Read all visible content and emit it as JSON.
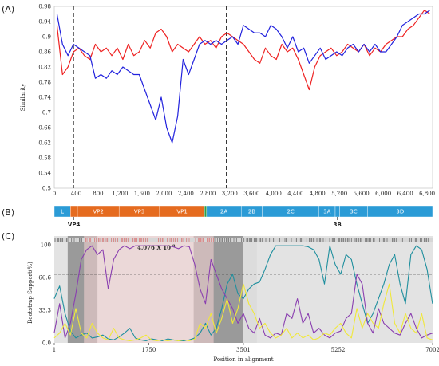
{
  "panel_labels": {
    "a": "(A)",
    "b": "(B)",
    "c": "(C)"
  },
  "chart_data": [
    {
      "type": "line",
      "panel": "(A)",
      "ylabel": "Similarity",
      "xlabel": "",
      "xlim": [
        0,
        6900
      ],
      "ylim": [
        0.5,
        0.98
      ],
      "x_ticks": [
        0,
        400,
        800,
        1200,
        1600,
        2000,
        2400,
        2800,
        3200,
        3600,
        4000,
        4400,
        4800,
        5200,
        5600,
        6000,
        6400,
        6800
      ],
      "x_tick_labels": [
        "0",
        "400",
        "800",
        "1,200",
        "1,600",
        "2,000",
        "2,400",
        "2,800",
        "3,200",
        "3,600",
        "4,000",
        "4,400",
        "4,800",
        "5,200",
        "5,600",
        "6,000",
        "6,400",
        "6,800"
      ],
      "y_ticks": [
        0.5,
        0.54,
        0.58,
        0.62,
        0.66,
        0.7,
        0.74,
        0.78,
        0.82,
        0.86,
        0.9,
        0.94,
        0.98
      ],
      "y_tick_labels": [
        "0.5",
        "0.54",
        "0.58",
        "0.62",
        "0.66",
        "0.7",
        "0.74",
        "0.78",
        "0.82",
        "0.86",
        "0.9",
        "0.94",
        "0.98"
      ],
      "vlines": [
        350,
        3140
      ],
      "grid": false,
      "series": [
        {
          "color": "#ee2222",
          "x": [
            50,
            150,
            250,
            350,
            450,
            550,
            650,
            750,
            850,
            950,
            1050,
            1150,
            1250,
            1350,
            1450,
            1550,
            1650,
            1750,
            1850,
            1950,
            2050,
            2150,
            2250,
            2350,
            2450,
            2550,
            2650,
            2750,
            2850,
            2950,
            3050,
            3150,
            3250,
            3350,
            3450,
            3550,
            3650,
            3750,
            3850,
            3950,
            4050,
            4150,
            4250,
            4350,
            4450,
            4550,
            4650,
            4750,
            4850,
            4950,
            5050,
            5150,
            5250,
            5350,
            5450,
            5550,
            5650,
            5750,
            5850,
            5950,
            6050,
            6150,
            6250,
            6350,
            6450,
            6550,
            6650,
            6750,
            6850
          ],
          "values": [
            0.93,
            0.8,
            0.82,
            0.86,
            0.87,
            0.85,
            0.84,
            0.88,
            0.86,
            0.87,
            0.85,
            0.87,
            0.84,
            0.88,
            0.85,
            0.86,
            0.89,
            0.87,
            0.91,
            0.92,
            0.9,
            0.86,
            0.88,
            0.87,
            0.86,
            0.88,
            0.9,
            0.88,
            0.89,
            0.87,
            0.9,
            0.91,
            0.9,
            0.89,
            0.88,
            0.86,
            0.84,
            0.83,
            0.87,
            0.85,
            0.84,
            0.88,
            0.86,
            0.87,
            0.84,
            0.8,
            0.76,
            0.82,
            0.85,
            0.86,
            0.87,
            0.85,
            0.86,
            0.88,
            0.87,
            0.86,
            0.88,
            0.85,
            0.87,
            0.86,
            0.88,
            0.89,
            0.9,
            0.9,
            0.92,
            0.93,
            0.95,
            0.97,
            0.96
          ]
        },
        {
          "color": "#2222dd",
          "x": [
            50,
            150,
            250,
            350,
            450,
            550,
            650,
            750,
            850,
            950,
            1050,
            1150,
            1250,
            1350,
            1450,
            1550,
            1650,
            1750,
            1850,
            1950,
            2050,
            2150,
            2250,
            2350,
            2450,
            2550,
            2650,
            2750,
            2850,
            2950,
            3050,
            3150,
            3250,
            3350,
            3450,
            3550,
            3650,
            3750,
            3850,
            3950,
            4050,
            4150,
            4250,
            4350,
            4450,
            4550,
            4650,
            4750,
            4850,
            4950,
            5050,
            5150,
            5250,
            5350,
            5450,
            5550,
            5650,
            5750,
            5850,
            5950,
            6050,
            6150,
            6250,
            6350,
            6450,
            6550,
            6650,
            6750,
            6850
          ],
          "values": [
            0.96,
            0.88,
            0.85,
            0.88,
            0.87,
            0.86,
            0.85,
            0.79,
            0.8,
            0.79,
            0.81,
            0.8,
            0.82,
            0.81,
            0.8,
            0.8,
            0.76,
            0.72,
            0.68,
            0.74,
            0.66,
            0.62,
            0.69,
            0.84,
            0.8,
            0.84,
            0.88,
            0.89,
            0.88,
            0.89,
            0.88,
            0.89,
            0.9,
            0.88,
            0.93,
            0.92,
            0.91,
            0.91,
            0.9,
            0.93,
            0.92,
            0.9,
            0.87,
            0.9,
            0.86,
            0.87,
            0.83,
            0.85,
            0.87,
            0.84,
            0.85,
            0.86,
            0.85,
            0.87,
            0.88,
            0.86,
            0.88,
            0.86,
            0.88,
            0.86,
            0.86,
            0.88,
            0.9,
            0.93,
            0.94,
            0.95,
            0.96,
            0.96,
            0.97
          ]
        }
      ]
    },
    {
      "type": "table",
      "panel": "(B)",
      "genome_length": 7002,
      "segments": [
        {
          "label": "L",
          "start": 1,
          "end": 300,
          "color": "#2b9bd6"
        },
        {
          "label": "",
          "start": 300,
          "end": 430,
          "color": "#e56b1f"
        },
        {
          "label": "VP2",
          "start": 430,
          "end": 1200,
          "color": "#e56b1f"
        },
        {
          "label": "VP3",
          "start": 1200,
          "end": 1950,
          "color": "#e56b1f"
        },
        {
          "label": "VP1",
          "start": 1950,
          "end": 2780,
          "color": "#e56b1f"
        },
        {
          "label": "",
          "start": 2780,
          "end": 2820,
          "color": "#2d9e4a"
        },
        {
          "label": "2A",
          "start": 2820,
          "end": 3460,
          "color": "#2b9bd6"
        },
        {
          "label": "2B",
          "start": 3460,
          "end": 3850,
          "color": "#2b9bd6"
        },
        {
          "label": "2C",
          "start": 3850,
          "end": 4900,
          "color": "#2b9bd6"
        },
        {
          "label": "3A",
          "start": 4900,
          "end": 5200,
          "color": "#2b9bd6"
        },
        {
          "label": "",
          "start": 5200,
          "end": 5280,
          "color": "#2b9bd6"
        },
        {
          "label": "3C",
          "start": 5280,
          "end": 5800,
          "color": "#2b9bd6"
        },
        {
          "label": "3D",
          "start": 5800,
          "end": 7002,
          "color": "#2b9bd6"
        }
      ],
      "callouts": [
        {
          "label": "VP4",
          "position": 365
        },
        {
          "label": "3B",
          "position": 5240
        }
      ]
    },
    {
      "type": "line",
      "panel": "(C)",
      "ylabel": "Bootstrap Support(%)",
      "xlabel": "Position in alignment",
      "xlim": [
        1,
        7002
      ],
      "ylim": [
        0,
        100
      ],
      "x_ticks": [
        1,
        1750,
        3501,
        5252,
        7002
      ],
      "x_tick_labels": [
        "1",
        "1750",
        "3501",
        "5252",
        "7002"
      ],
      "y_ticks": [
        0,
        33.3,
        66.6,
        100
      ],
      "y_tick_labels": [
        "0.0",
        "33.3",
        "66.6",
        "100"
      ],
      "threshold": 70,
      "annotation": "4.076 X 10",
      "annotation_sup": "-8",
      "shaded": [
        {
          "start": 250,
          "end": 3750,
          "color": "#dcdcdc"
        },
        {
          "start": 250,
          "end": 800,
          "color": "#9a9a9a"
        },
        {
          "start": 2580,
          "end": 3500,
          "color": "#9a9a9a"
        },
        {
          "start": 550,
          "end": 2950,
          "color": "#f7d5d5"
        }
      ],
      "grid": false,
      "series": [
        {
          "color": "#1f8f9e",
          "x": [
            0,
            100,
            200,
            300,
            400,
            500,
            600,
            700,
            800,
            900,
            1000,
            1100,
            1200,
            1300,
            1400,
            1500,
            1600,
            1700,
            1800,
            1900,
            2000,
            2100,
            2200,
            2300,
            2400,
            2500,
            2600,
            2700,
            2800,
            2900,
            3000,
            3100,
            3200,
            3300,
            3400,
            3500,
            3600,
            3700,
            3800,
            3900,
            4000,
            4100,
            4200,
            4300,
            4400,
            4500,
            4600,
            4700,
            4800,
            4900,
            5000,
            5100,
            5200,
            5300,
            5400,
            5500,
            5600,
            5700,
            5800,
            5900,
            6000,
            6100,
            6200,
            6300,
            6400,
            6500,
            6600,
            6700,
            6800,
            6900,
            7000
          ],
          "values": [
            45,
            58,
            30,
            12,
            5,
            8,
            10,
            5,
            6,
            8,
            4,
            3,
            6,
            10,
            15,
            5,
            3,
            2,
            4,
            3,
            2,
            4,
            3,
            2,
            2,
            3,
            5,
            10,
            20,
            8,
            15,
            35,
            60,
            70,
            50,
            45,
            55,
            60,
            62,
            75,
            90,
            99,
            99,
            99,
            99,
            99,
            99,
            98,
            95,
            85,
            60,
            99,
            80,
            70,
            90,
            85,
            60,
            40,
            20,
            30,
            45,
            60,
            80,
            90,
            60,
            40,
            90,
            99,
            95,
            75,
            40
          ]
        },
        {
          "color": "#8a3fb0",
          "x": [
            0,
            100,
            200,
            300,
            400,
            500,
            600,
            700,
            800,
            900,
            1000,
            1100,
            1200,
            1300,
            1400,
            1500,
            1600,
            1700,
            1800,
            1900,
            2000,
            2100,
            2200,
            2300,
            2400,
            2500,
            2600,
            2700,
            2800,
            2900,
            3000,
            3100,
            3200,
            3300,
            3400,
            3500,
            3600,
            3700,
            3800,
            3900,
            4000,
            4100,
            4200,
            4300,
            4400,
            4500,
            4600,
            4700,
            4800,
            4900,
            5000,
            5100,
            5200,
            5300,
            5400,
            5500,
            5600,
            5700,
            5800,
            5900,
            6000,
            6100,
            6200,
            6300,
            6400,
            6500,
            6600,
            6700,
            6800,
            6900,
            7000
          ],
          "values": [
            10,
            40,
            5,
            20,
            50,
            85,
            95,
            99,
            90,
            95,
            55,
            85,
            95,
            99,
            96,
            99,
            99,
            99,
            99,
            99,
            99,
            99,
            98,
            96,
            99,
            98,
            80,
            55,
            40,
            85,
            70,
            55,
            45,
            35,
            20,
            30,
            15,
            10,
            25,
            8,
            5,
            10,
            8,
            30,
            25,
            45,
            20,
            30,
            10,
            15,
            8,
            5,
            10,
            12,
            25,
            30,
            70,
            60,
            20,
            10,
            35,
            20,
            15,
            10,
            8,
            20,
            30,
            15,
            5,
            8,
            10
          ]
        },
        {
          "color": "#f0e83a",
          "x": [
            0,
            100,
            200,
            300,
            400,
            500,
            600,
            700,
            800,
            900,
            1000,
            1100,
            1200,
            1300,
            1400,
            1500,
            1600,
            1700,
            1800,
            1900,
            2000,
            2100,
            2200,
            2300,
            2400,
            2500,
            2600,
            2700,
            2800,
            2900,
            3000,
            3100,
            3200,
            3300,
            3400,
            3500,
            3600,
            3700,
            3800,
            3900,
            4000,
            4100,
            4200,
            4300,
            4400,
            4500,
            4600,
            4700,
            4800,
            4900,
            5000,
            5100,
            5200,
            5300,
            5400,
            5500,
            5600,
            5700,
            5800,
            5900,
            6000,
            6100,
            6200,
            6300,
            6400,
            6500,
            6600,
            6700,
            6800,
            6900,
            7000
          ],
          "values": [
            5,
            10,
            20,
            8,
            35,
            10,
            5,
            20,
            10,
            5,
            3,
            15,
            5,
            3,
            2,
            3,
            5,
            8,
            3,
            2,
            3,
            2,
            3,
            2,
            3,
            2,
            4,
            20,
            15,
            30,
            10,
            25,
            45,
            20,
            35,
            60,
            40,
            30,
            15,
            20,
            10,
            5,
            8,
            15,
            5,
            10,
            5,
            8,
            3,
            5,
            10,
            8,
            15,
            20,
            10,
            5,
            35,
            15,
            30,
            20,
            15,
            40,
            60,
            20,
            10,
            30,
            15,
            10,
            30,
            5,
            3
          ]
        }
      ]
    }
  ]
}
